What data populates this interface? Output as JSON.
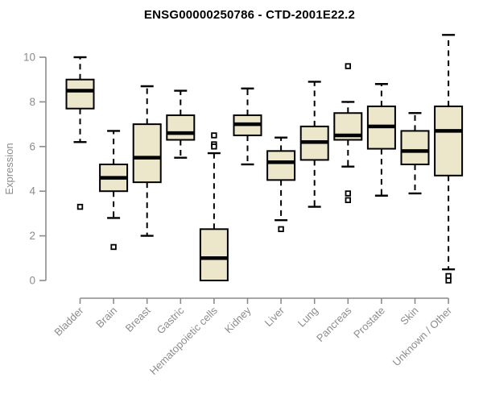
{
  "title": "ENSG00000250786 - CTD-2001E22.2",
  "colors": {
    "box_fill": "#ece6cb",
    "box_border": "#000000",
    "median": "#000000",
    "axis_text": "#8c8c8c",
    "axis_line": "#8c8c8c",
    "title": "#000000",
    "background": "#ffffff",
    "outlier_fill": "#ffffff"
  },
  "chart_data": {
    "type": "boxplot",
    "title": "ENSG00000250786 - CTD-2001E22.2",
    "xlabel": "",
    "ylabel": "Expression",
    "ylim": [
      0,
      11
    ],
    "yticks": [
      0,
      2,
      4,
      6,
      8,
      10
    ],
    "grid": false,
    "legend": "none",
    "categories": [
      "Bladder",
      "Brain",
      "Breast",
      "Gastric",
      "Hematopoietic cells",
      "Kidney",
      "Liver",
      "Lung",
      "Pancreas",
      "Prostate",
      "Skin",
      "Unknown / Other"
    ],
    "series": [
      {
        "name": "Bladder",
        "low": 6.2,
        "q1": 7.7,
        "median": 8.5,
        "q3": 9.0,
        "high": 10.0,
        "outliers": [
          3.3
        ]
      },
      {
        "name": "Brain",
        "low": 2.8,
        "q1": 4.0,
        "median": 4.6,
        "q3": 5.2,
        "high": 6.7,
        "outliers": [
          1.5
        ]
      },
      {
        "name": "Breast",
        "low": 2.0,
        "q1": 4.4,
        "median": 5.5,
        "q3": 7.0,
        "high": 8.7,
        "outliers": []
      },
      {
        "name": "Gastric",
        "low": 5.5,
        "q1": 6.3,
        "median": 6.6,
        "q3": 7.4,
        "high": 8.5,
        "outliers": []
      },
      {
        "name": "Hematopoietic cells",
        "low": 0.0,
        "q1": 0.0,
        "median": 1.0,
        "q3": 2.3,
        "high": 5.7,
        "outliers": [
          6.5,
          6.1,
          6.0
        ]
      },
      {
        "name": "Kidney",
        "low": 5.2,
        "q1": 6.5,
        "median": 7.0,
        "q3": 7.4,
        "high": 8.6,
        "outliers": []
      },
      {
        "name": "Liver",
        "low": 2.7,
        "q1": 4.5,
        "median": 5.3,
        "q3": 5.8,
        "high": 6.4,
        "outliers": [
          2.3
        ]
      },
      {
        "name": "Lung",
        "low": 3.3,
        "q1": 5.4,
        "median": 6.2,
        "q3": 6.9,
        "high": 8.9,
        "outliers": []
      },
      {
        "name": "Pancreas",
        "low": 5.1,
        "q1": 6.3,
        "median": 6.5,
        "q3": 7.5,
        "high": 8.0,
        "outliers": [
          9.6,
          3.9,
          3.6
        ]
      },
      {
        "name": "Prostate",
        "low": 3.8,
        "q1": 5.9,
        "median": 6.9,
        "q3": 7.8,
        "high": 8.8,
        "outliers": []
      },
      {
        "name": "Skin",
        "low": 3.9,
        "q1": 5.2,
        "median": 5.8,
        "q3": 6.7,
        "high": 7.5,
        "outliers": []
      },
      {
        "name": "Unknown / Other",
        "low": 0.5,
        "q1": 4.7,
        "median": 6.7,
        "q3": 7.8,
        "high": 11.0,
        "outliers": [
          0.2,
          0.0
        ]
      }
    ]
  }
}
